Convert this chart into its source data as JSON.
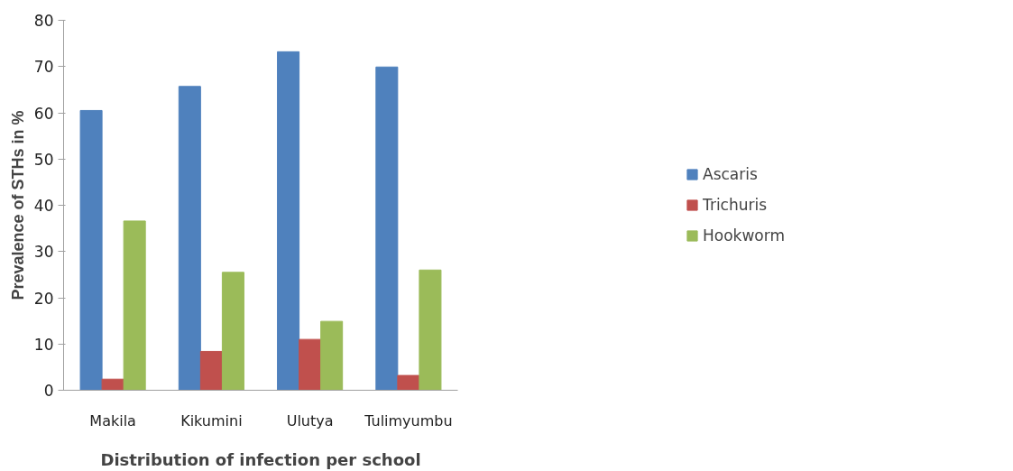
{
  "chart_data": {
    "type": "bar",
    "xlabel": "Distribution of infection per school",
    "ylabel": "Prevalence of STHs in %",
    "categories": [
      "Makila",
      "Kikumini",
      "Ulutya",
      "Tulimyumbu"
    ],
    "series": [
      {
        "name": "Ascaris",
        "color": "#4f81bd",
        "values": [
          60.5,
          65.7,
          73.2,
          69.9
        ]
      },
      {
        "name": "Trichuris",
        "color": "#c0504d",
        "values": [
          2.4,
          8.4,
          11.0,
          3.2
        ]
      },
      {
        "name": "Hookworm",
        "color": "#9bbb59",
        "values": [
          36.6,
          25.5,
          14.9,
          26.0
        ]
      }
    ],
    "ylim": [
      0,
      80
    ],
    "yticks": [
      0,
      10,
      20,
      30,
      40,
      50,
      60,
      70,
      80
    ],
    "grid": false,
    "legend": "right"
  }
}
